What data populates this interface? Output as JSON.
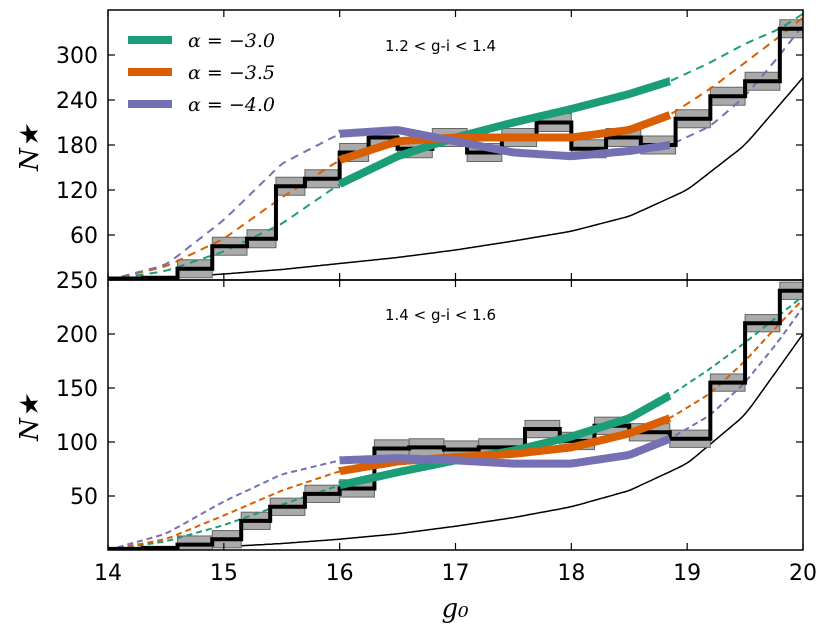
{
  "chart_data": [
    {
      "type": "line",
      "panel": "top",
      "annotation": "1.2 < g-i < 1.4",
      "xlabel": "g0",
      "ylabel": "N★",
      "xlim": [
        14,
        20
      ],
      "ylim": [
        0,
        360
      ],
      "yticks": [
        60,
        120,
        180,
        240,
        300
      ],
      "ytick_labels": [
        "60",
        "120",
        "180",
        "240",
        "300"
      ],
      "legend": [
        "α = −3.0",
        "α = −3.5",
        "α = −4.0"
      ],
      "colors": [
        "#1b9e77",
        "#d95f02",
        "#7570b3"
      ],
      "histogram": {
        "edges": [
          14.0,
          14.3,
          14.6,
          14.9,
          15.2,
          15.45,
          15.7,
          16.0,
          16.25,
          16.5,
          16.8,
          17.1,
          17.4,
          17.7,
          18.0,
          18.3,
          18.6,
          18.9,
          19.2,
          19.5,
          19.8
        ],
        "values": [
          2,
          3,
          15,
          45,
          55,
          125,
          135,
          170,
          190,
          175,
          190,
          170,
          190,
          210,
          175,
          190,
          180,
          215,
          245,
          265,
          335
        ]
      },
      "series": [
        {
          "name": "α = −3.0",
          "x": [
            14.0,
            14.5,
            15.0,
            15.5,
            16.0,
            16.5,
            17.0,
            17.5,
            18.0,
            18.5,
            18.85,
            19.2,
            19.5,
            19.8,
            20.0
          ],
          "y": [
            0,
            12,
            38,
            75,
            128,
            165,
            190,
            210,
            228,
            248,
            265,
            290,
            315,
            335,
            355
          ],
          "solid_range": [
            16.0,
            18.85
          ]
        },
        {
          "name": "α = −3.5",
          "x": [
            14.0,
            14.5,
            15.0,
            15.5,
            16.0,
            16.5,
            17.0,
            17.5,
            18.0,
            18.5,
            18.85,
            19.2,
            19.5,
            19.8,
            20.0
          ],
          "y": [
            0,
            18,
            55,
            110,
            160,
            185,
            190,
            190,
            190,
            200,
            220,
            255,
            290,
            325,
            350
          ],
          "solid_range": [
            16.0,
            18.85
          ]
        },
        {
          "name": "α = −4.0",
          "x": [
            14.0,
            14.5,
            15.0,
            15.5,
            16.0,
            16.5,
            17.0,
            17.5,
            18.0,
            18.5,
            18.85,
            19.2,
            19.5,
            19.8,
            20.0
          ],
          "y": [
            0,
            20,
            80,
            155,
            195,
            200,
            185,
            170,
            165,
            172,
            180,
            205,
            245,
            300,
            340
          ],
          "solid_range": [
            16.0,
            18.85
          ]
        },
        {
          "name": "background",
          "x": [
            14.0,
            14.5,
            15.0,
            15.5,
            16.0,
            16.5,
            17.0,
            17.5,
            18.0,
            18.5,
            19.0,
            19.5,
            20.0
          ],
          "y": [
            0,
            3,
            8,
            14,
            22,
            30,
            40,
            52,
            65,
            85,
            120,
            180,
            270
          ]
        }
      ]
    },
    {
      "type": "line",
      "panel": "bottom",
      "annotation": "1.4 < g-i < 1.6",
      "xlabel": "g₀",
      "ylabel": "N★",
      "xlim": [
        14,
        20
      ],
      "ylim": [
        0,
        250
      ],
      "xticks": [
        14,
        15,
        16,
        17,
        18,
        19,
        20
      ],
      "xtick_labels": [
        "14",
        "15",
        "16",
        "17",
        "18",
        "19",
        "20"
      ],
      "yticks": [
        50,
        100,
        150,
        200,
        250
      ],
      "ytick_labels": [
        "50",
        "100",
        "150",
        "200",
        "250"
      ],
      "histogram": {
        "edges": [
          14.0,
          14.3,
          14.6,
          14.9,
          15.15,
          15.4,
          15.7,
          16.0,
          16.3,
          16.6,
          16.9,
          17.2,
          17.6,
          17.9,
          18.2,
          18.5,
          18.85,
          19.2,
          19.5,
          19.8
        ],
        "values": [
          1,
          2,
          5,
          10,
          27,
          40,
          52,
          57,
          94,
          95,
          93,
          95,
          112,
          101,
          115,
          109,
          103,
          155,
          210,
          240
        ]
      },
      "series": [
        {
          "name": "α = −3.0",
          "x": [
            14.0,
            14.5,
            15.0,
            15.5,
            16.0,
            16.5,
            17.0,
            17.5,
            18.0,
            18.5,
            18.85,
            19.2,
            19.5,
            19.8,
            20.0
          ],
          "y": [
            0,
            8,
            23,
            42,
            60,
            72,
            83,
            92,
            105,
            122,
            143,
            168,
            192,
            218,
            235
          ],
          "solid_range": [
            16.0,
            18.85
          ]
        },
        {
          "name": "α = −3.5",
          "x": [
            14.0,
            14.5,
            15.0,
            15.5,
            16.0,
            16.5,
            17.0,
            17.5,
            18.0,
            18.5,
            18.85,
            19.2,
            19.5,
            19.8,
            20.0
          ],
          "y": [
            0,
            10,
            32,
            55,
            73,
            82,
            86,
            89,
            95,
            108,
            122,
            145,
            175,
            210,
            232
          ],
          "solid_range": [
            16.0,
            18.85
          ]
        },
        {
          "name": "α = −4.0",
          "x": [
            14.0,
            14.5,
            15.0,
            15.5,
            16.0,
            16.5,
            17.0,
            17.5,
            18.0,
            18.5,
            18.85,
            19.2,
            19.5,
            19.8,
            20.0
          ],
          "y": [
            0,
            15,
            45,
            70,
            83,
            85,
            83,
            80,
            80,
            88,
            103,
            125,
            155,
            195,
            225
          ],
          "solid_range": [
            16.0,
            18.85
          ]
        },
        {
          "name": "background",
          "x": [
            14.0,
            14.5,
            15.0,
            15.5,
            16.0,
            16.5,
            17.0,
            17.5,
            18.0,
            18.5,
            19.0,
            19.5,
            20.0
          ],
          "y": [
            0,
            1,
            3,
            6,
            10,
            15,
            22,
            30,
            40,
            55,
            80,
            125,
            200
          ]
        }
      ]
    }
  ]
}
